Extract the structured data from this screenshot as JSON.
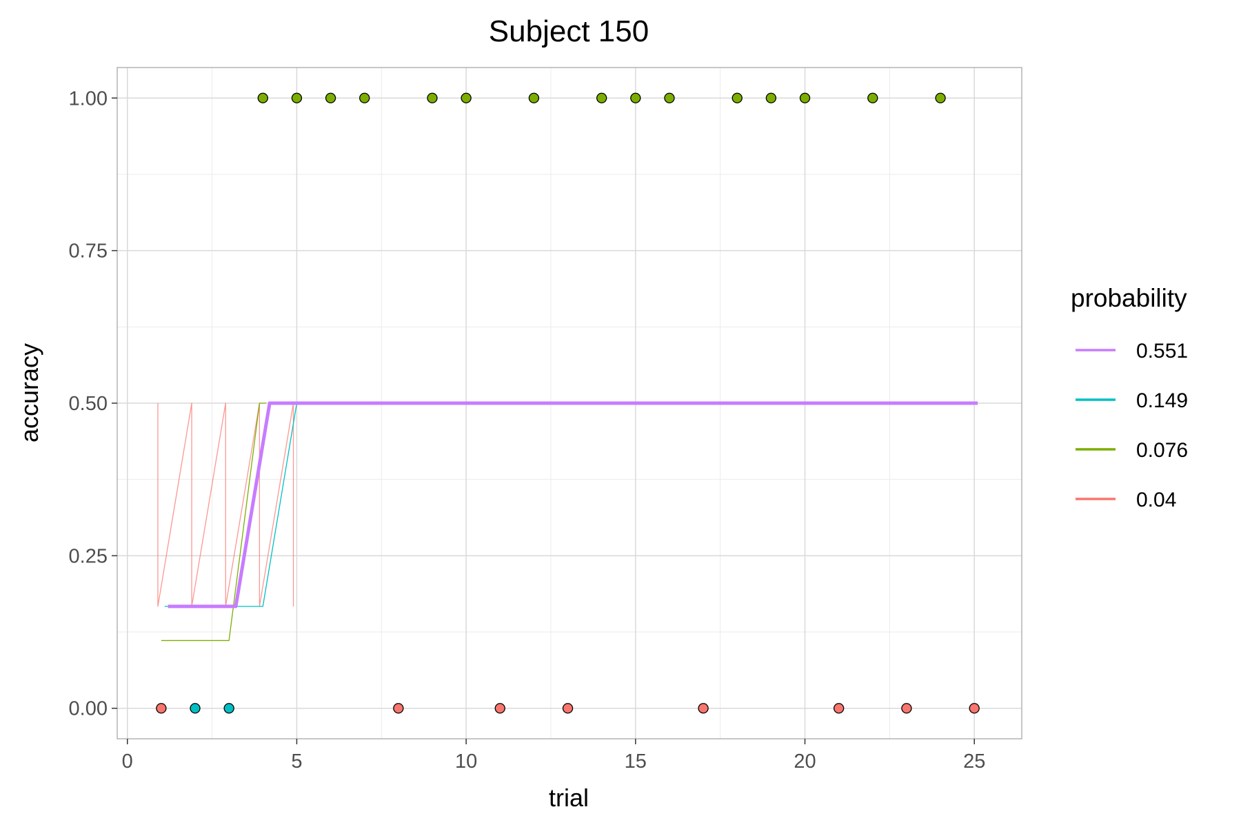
{
  "chart_data": {
    "type": "scatter",
    "title": "Subject 150",
    "xlabel": "trial",
    "ylabel": "accuracy",
    "xlim": [
      -0.3,
      26.4
    ],
    "ylim": [
      -0.05,
      1.05
    ],
    "x_ticks": [
      0,
      5,
      10,
      15,
      20,
      25
    ],
    "x_tick_labels": [
      "0",
      "5",
      "10",
      "15",
      "20",
      "25"
    ],
    "y_ticks": [
      0,
      0.25,
      0.5,
      0.75,
      1
    ],
    "y_tick_labels": [
      "0.00",
      "0.25",
      "0.50",
      "0.75",
      "1.00"
    ],
    "grid": true,
    "legend": {
      "title": "probability",
      "position": "right",
      "entries": [
        {
          "label": "0.551",
          "color": "#c77cff"
        },
        {
          "label": "0.149",
          "color": "#00bfc4"
        },
        {
          "label": "0.076",
          "color": "#7cae00"
        },
        {
          "label": "0.04",
          "color": "#f8766d"
        }
      ]
    },
    "points": [
      {
        "x": 1,
        "y": 0,
        "color": "#f8766d"
      },
      {
        "x": 2,
        "y": 0,
        "color": "#00bfc4"
      },
      {
        "x": 3,
        "y": 0,
        "color": "#00bfc4"
      },
      {
        "x": 4,
        "y": 1,
        "color": "#7cae00"
      },
      {
        "x": 5,
        "y": 1,
        "color": "#7cae00"
      },
      {
        "x": 6,
        "y": 1,
        "color": "#7cae00"
      },
      {
        "x": 7,
        "y": 1,
        "color": "#7cae00"
      },
      {
        "x": 8,
        "y": 0,
        "color": "#f8766d"
      },
      {
        "x": 9,
        "y": 1,
        "color": "#7cae00"
      },
      {
        "x": 10,
        "y": 1,
        "color": "#7cae00"
      },
      {
        "x": 11,
        "y": 0,
        "color": "#f8766d"
      },
      {
        "x": 12,
        "y": 1,
        "color": "#7cae00"
      },
      {
        "x": 13,
        "y": 0,
        "color": "#f8766d"
      },
      {
        "x": 14,
        "y": 1,
        "color": "#7cae00"
      },
      {
        "x": 15,
        "y": 1,
        "color": "#7cae00"
      },
      {
        "x": 16,
        "y": 1,
        "color": "#7cae00"
      },
      {
        "x": 17,
        "y": 0,
        "color": "#f8766d"
      },
      {
        "x": 18,
        "y": 1,
        "color": "#7cae00"
      },
      {
        "x": 19,
        "y": 1,
        "color": "#7cae00"
      },
      {
        "x": 20,
        "y": 1,
        "color": "#7cae00"
      },
      {
        "x": 21,
        "y": 0,
        "color": "#f8766d"
      },
      {
        "x": 22,
        "y": 1,
        "color": "#7cae00"
      },
      {
        "x": 23,
        "y": 0,
        "color": "#f8766d"
      },
      {
        "x": 24,
        "y": 1,
        "color": "#7cae00"
      },
      {
        "x": 25,
        "y": 0,
        "color": "#f8766d"
      }
    ],
    "series": [
      {
        "name": "0.04",
        "color": "#f8766d",
        "values": [
          [
            0.9,
            0.5
          ],
          [
            0.9,
            0.167
          ],
          [
            1.9,
            0.5
          ],
          [
            1.9,
            0.167
          ],
          [
            2.9,
            0.5
          ],
          [
            2.9,
            0.167
          ],
          [
            3.9,
            0.5
          ],
          [
            3.9,
            0.167
          ],
          [
            4.9,
            0.5
          ],
          [
            4.9,
            0.167
          ]
        ]
      },
      {
        "name": "0.076",
        "color": "#7cae00",
        "values": [
          [
            1.0,
            0.111
          ],
          [
            3.0,
            0.111
          ],
          [
            3.9,
            0.5
          ],
          [
            4.1,
            0.5
          ]
        ]
      },
      {
        "name": "0.149",
        "color": "#00bfc4",
        "values": [
          [
            1.1,
            0.167
          ],
          [
            4.0,
            0.167
          ],
          [
            5.0,
            0.5
          ]
        ]
      },
      {
        "name": "0.551",
        "color": "#c77cff",
        "values": [
          [
            1.2,
            0.167
          ],
          [
            3.2,
            0.167
          ],
          [
            4.2,
            0.5
          ],
          [
            25.1,
            0.5
          ]
        ]
      }
    ]
  }
}
